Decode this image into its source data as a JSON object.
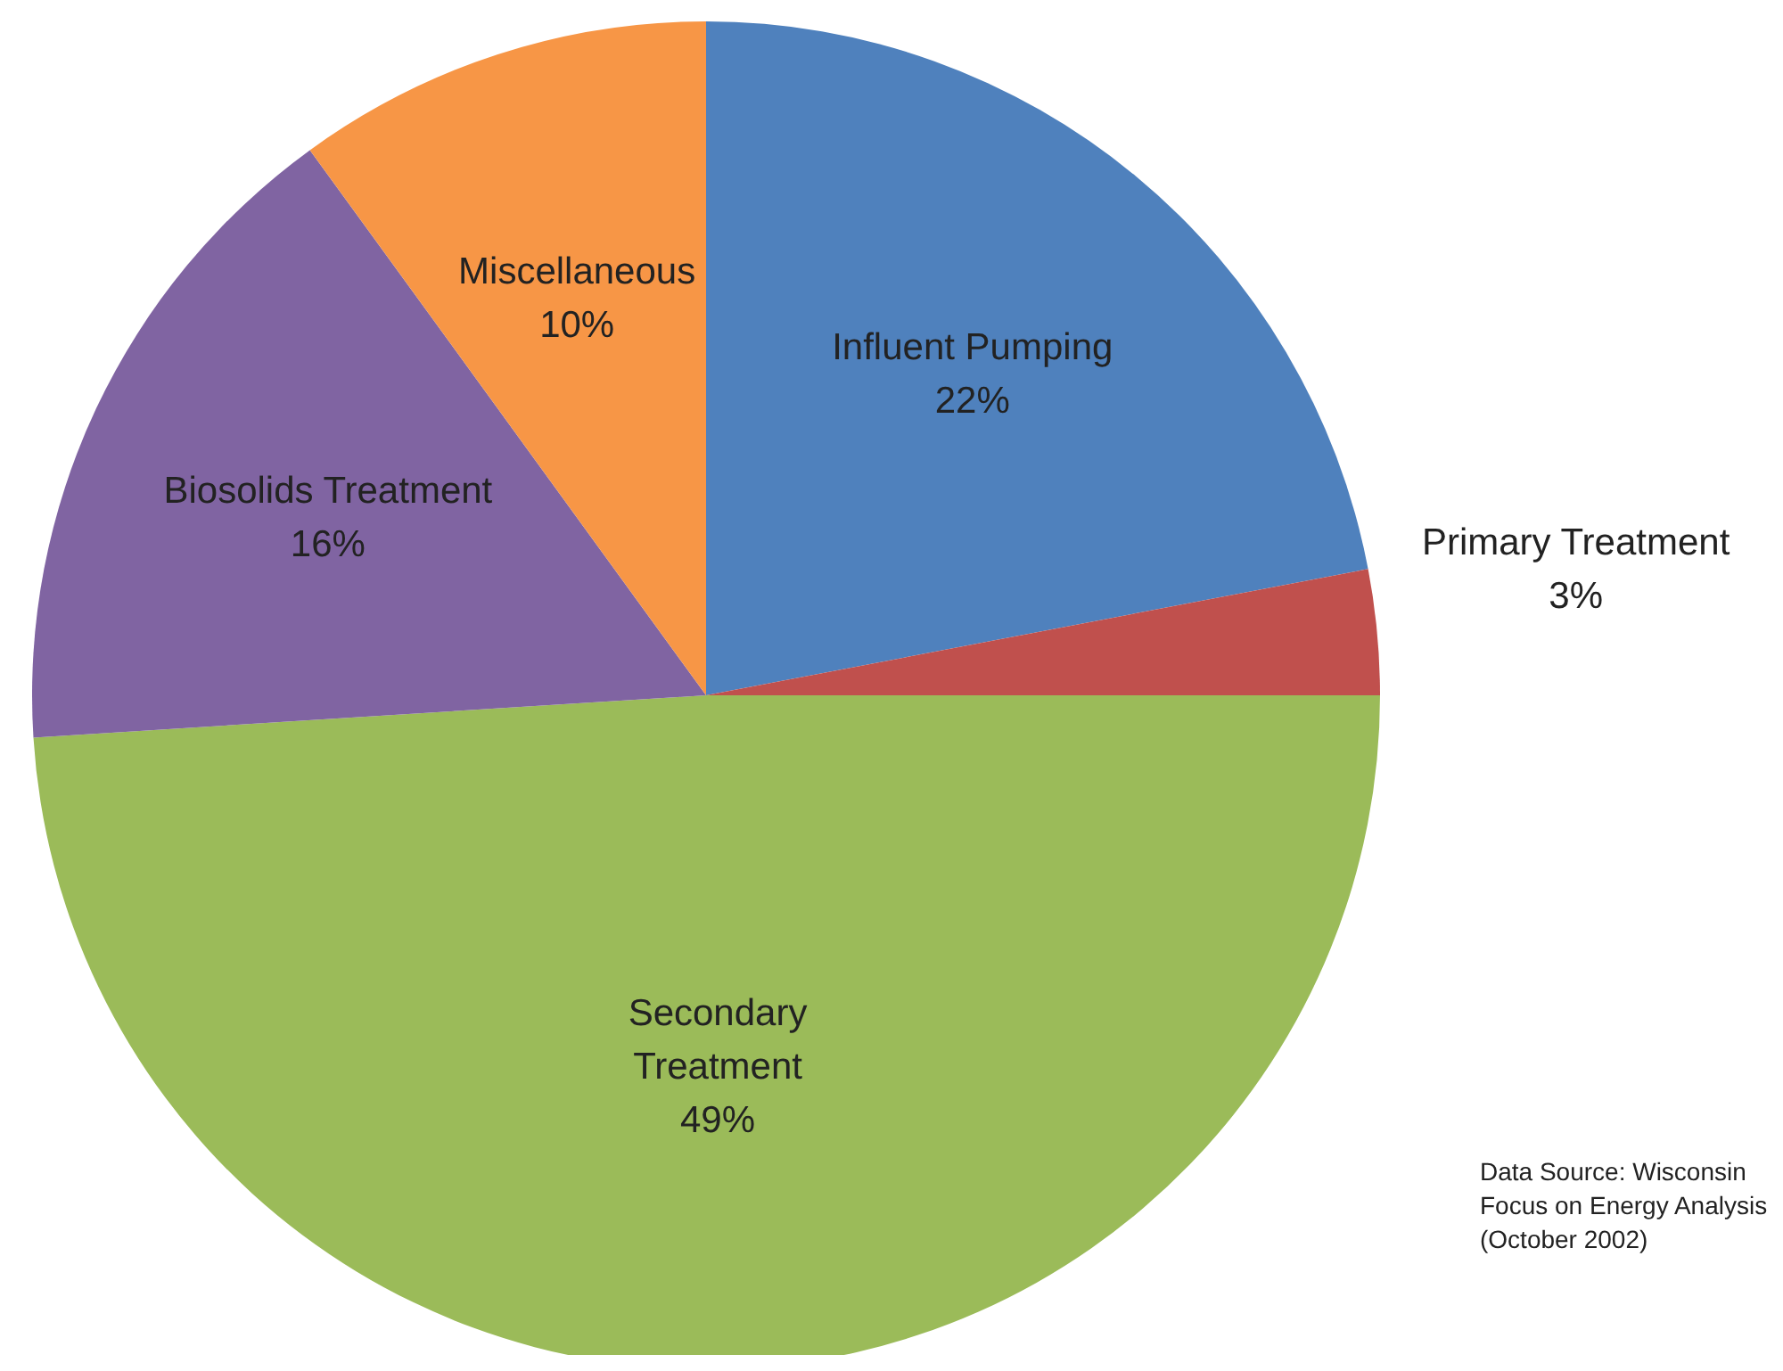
{
  "chart_data": {
    "type": "pie",
    "categories": [
      "Influent Pumping",
      "Primary Treatment",
      "Secondary Treatment",
      "Biosolids Treatment",
      "Miscellaneous"
    ],
    "values": [
      22,
      3,
      49,
      16,
      10
    ],
    "value_labels": [
      "22%",
      "3%",
      "49%",
      "16%",
      "10%"
    ],
    "colors": [
      "#4f81bd",
      "#c0504d",
      "#9bbb59",
      "#8064a2",
      "#f79646"
    ],
    "annotations": [
      "Data Source:  Wisconsin Focus on Energy Analysis (October 2002)"
    ]
  }
}
